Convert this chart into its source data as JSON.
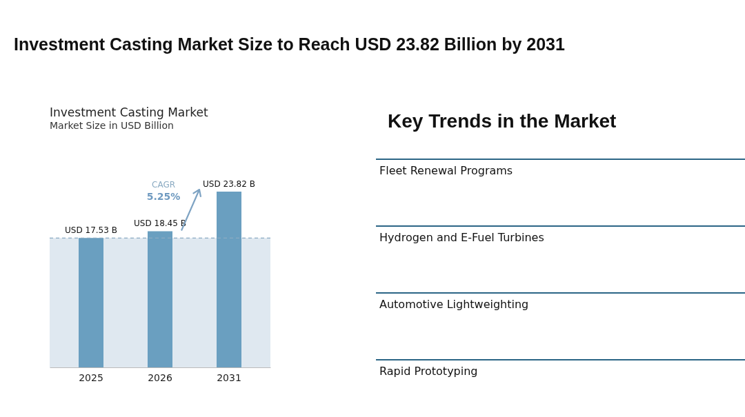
{
  "chart_data": [
    {
      "type": "bar",
      "title": "Investment Casting Market",
      "subtitle": "Market Size in USD Billion",
      "annotations": [
        "Investment Casting Market Size to Reach USD 23.82 Billion by 2031",
        "CAGR",
        "5.25%"
      ],
      "categories": [
        "2025",
        "2026",
        "2031"
      ],
      "values": [
        17.53,
        18.45,
        23.82
      ],
      "color": "#6a9fc0",
      "value_labels": [
        "USD 17.53 B",
        "USD 18.45 B",
        "USD 23.82 B"
      ],
      "ref_lines": [
        {
          "axis": "y",
          "value": 17.53,
          "color": "#8aaac2",
          "line_style": "dashed"
        }
      ],
      "bands": [
        {
          "axis": "y",
          "from": 0,
          "to": 17.53,
          "color": "#dfe8f0"
        }
      ],
      "grid": false,
      "tick_labels": "x"
    },
    {
      "type": "other",
      "title": "Key Trends in the Market",
      "annotations": [
        "Fleet Renewal Programs",
        "Hydrogen and E-Fuel Turbines",
        "Automotive Lightweighting",
        "Rapid Prototyping"
      ]
    }
  ]
}
